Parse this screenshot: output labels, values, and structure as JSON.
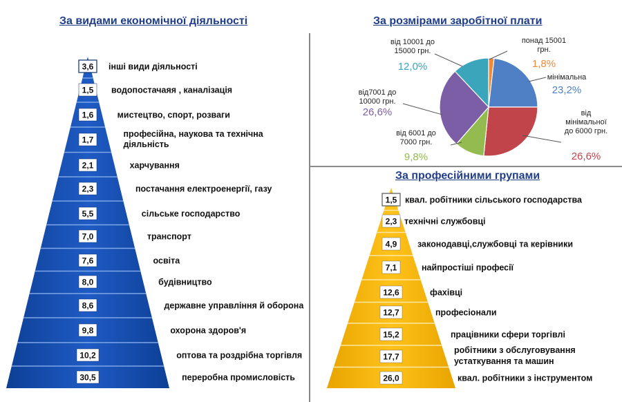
{
  "titles": {
    "left": "За видами економічної діяльності",
    "top_right": "За розмірами заробітної плати",
    "bottom_right": "За професійними групами"
  },
  "colors": {
    "blue_pyramid": "#1f5bc4",
    "blue_pyramid_dark": "#0d3f96",
    "yellow_pyramid": "#ffc21a",
    "yellow_pyramid_dark": "#e8a400",
    "title": "#1f3d8a"
  },
  "chart_data": [
    {
      "type": "bar",
      "title": "За видами економічної діяльності",
      "categories": [
        "інші види діяльності",
        "водопостачаяя , каналізація",
        "мистецтво, спорт, розваги",
        "професійна, наукова та технічна діяльність",
        "харчування",
        "постачання електроенергії, газу",
        "сільське господарство",
        "транспорт",
        "освіта",
        "будівництво",
        "державне управління й оборона",
        "охорона здоров'я",
        "оптова та роздрібна торгівля",
        "переробна промисловість"
      ],
      "value_labels": [
        "3,6",
        "1,5",
        "1,6",
        "1,7",
        "2,1",
        "2,3",
        "5,5",
        "7,0",
        "7,6",
        "8,0",
        "8,6",
        "9,8",
        "10,2",
        "30,5"
      ],
      "values": [
        3.6,
        1.5,
        1.6,
        1.7,
        2.1,
        2.3,
        5.5,
        7.0,
        7.6,
        8.0,
        8.6,
        9.8,
        10.2,
        30.5
      ]
    },
    {
      "type": "pie",
      "title": "За розмірами заробітної плати",
      "slices": [
        {
          "category": "понад 15001 грн.",
          "value": 1.8,
          "label": "1,8%",
          "color": "#f08a3a"
        },
        {
          "category": "мінімальна",
          "value": 23.2,
          "label": "23,2%",
          "color": "#4f7fc4"
        },
        {
          "category": "від мінімальної до 6000 грн.",
          "value": 26.6,
          "label": "26,6%",
          "color": "#c0444a"
        },
        {
          "category": "від 6001 до 7000 грн.",
          "value": 9.8,
          "label": "9,8%",
          "color": "#94bb4f"
        },
        {
          "category": "від7001 до 10000 грн.",
          "value": 26.6,
          "label": "26,6%",
          "color": "#7c5ea6"
        },
        {
          "category": "від 10001 до 15000 грн.",
          "value": 12.0,
          "label": "12,0%",
          "color": "#3aa5bb"
        }
      ],
      "label_lines": {
        "понад 15001 грн.": [
          "понад 15001",
          "грн."
        ],
        "мінімальна": [
          "мінімальна"
        ],
        "від мінімальної до 6000 грн.": [
          "від",
          "мінімальної",
          "до 6000 грн."
        ],
        "від 6001 до 7000 грн.": [
          "від 6001  до",
          "7000 грн."
        ],
        "від7001 до 10000 грн.": [
          "від7001 до",
          "10000 грн."
        ],
        "від 10001 до 15000 грн.": [
          "від 10001  до",
          "15000 грн."
        ]
      }
    },
    {
      "type": "bar",
      "title": "За професійними групами",
      "categories": [
        "квал. робітники сільського господарства",
        "технічні службовці",
        "законодавці,службовці та керівники",
        "найпростіші професії",
        "фахівці",
        "професіонали",
        "працівники сфери торгівлі",
        "робітники  з  обслуговування устаткування та машин",
        "квал. робітники з інструментом"
      ],
      "category_lines": [
        [
          "квал. робітники сільського господарства"
        ],
        [
          "технічні службовці"
        ],
        [
          "законодавці,службовці та керівники"
        ],
        [
          "найпростіші професії"
        ],
        [
          "фахівці"
        ],
        [
          "професіонали"
        ],
        [
          "працівники сфери торгівлі"
        ],
        [
          "робітники  з  обслуговування",
          "устаткування та машин"
        ],
        [
          "квал. робітники з інструментом"
        ]
      ],
      "value_labels": [
        "1,5",
        "2,3",
        "4,9",
        "7,1",
        "12,6",
        "12,7",
        "15,2",
        "17,7",
        "26,0"
      ],
      "values": [
        1.5,
        2.3,
        4.9,
        7.1,
        12.6,
        12.7,
        15.2,
        17.7,
        26.0
      ]
    }
  ],
  "left_label_lines": [
    [
      "інші види діяльності"
    ],
    [
      "водопостачаяя , каналізація"
    ],
    [
      "мистецтво, спорт, розваги"
    ],
    [
      "професійна, наукова та технічна",
      "діяльність"
    ],
    [
      "харчування"
    ],
    [
      "постачання електроенергії, газу"
    ],
    [
      "сільське господарство"
    ],
    [
      "транспорт"
    ],
    [
      "освіта"
    ],
    [
      "будівництво"
    ],
    [
      "державне управління й оборона"
    ],
    [
      "охорона здоров'я"
    ],
    [
      "оптова та роздрібна торгівля"
    ],
    [
      "переробна промисловість"
    ]
  ]
}
